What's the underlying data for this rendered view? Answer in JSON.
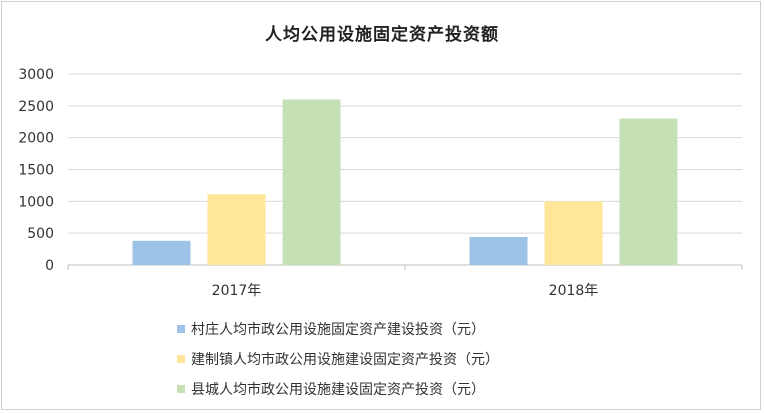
{
  "chart_data": {
    "type": "bar",
    "title": "人均公用设施固定资产投资额",
    "categories": [
      "2017年",
      "2018年"
    ],
    "series": [
      {
        "name": "村庄人均市政公用设施固定资产建设投资（元）",
        "color": "#9dc3e6",
        "values": [
          380,
          440
        ]
      },
      {
        "name": "建制镇人均市政公用设施建设固定资产投资（元）",
        "color": "#ffe699",
        "values": [
          1110,
          1000
        ]
      },
      {
        "name": "县城人均市政公用设施建设固定资产投资（元）",
        "color": "#c5e0b4",
        "values": [
          2600,
          2300
        ]
      }
    ],
    "yticks": [
      0,
      500,
      1000,
      1500,
      2000,
      2500,
      3000
    ],
    "ylim": [
      0,
      3000
    ],
    "grid": true,
    "legend_position": "bottom"
  }
}
